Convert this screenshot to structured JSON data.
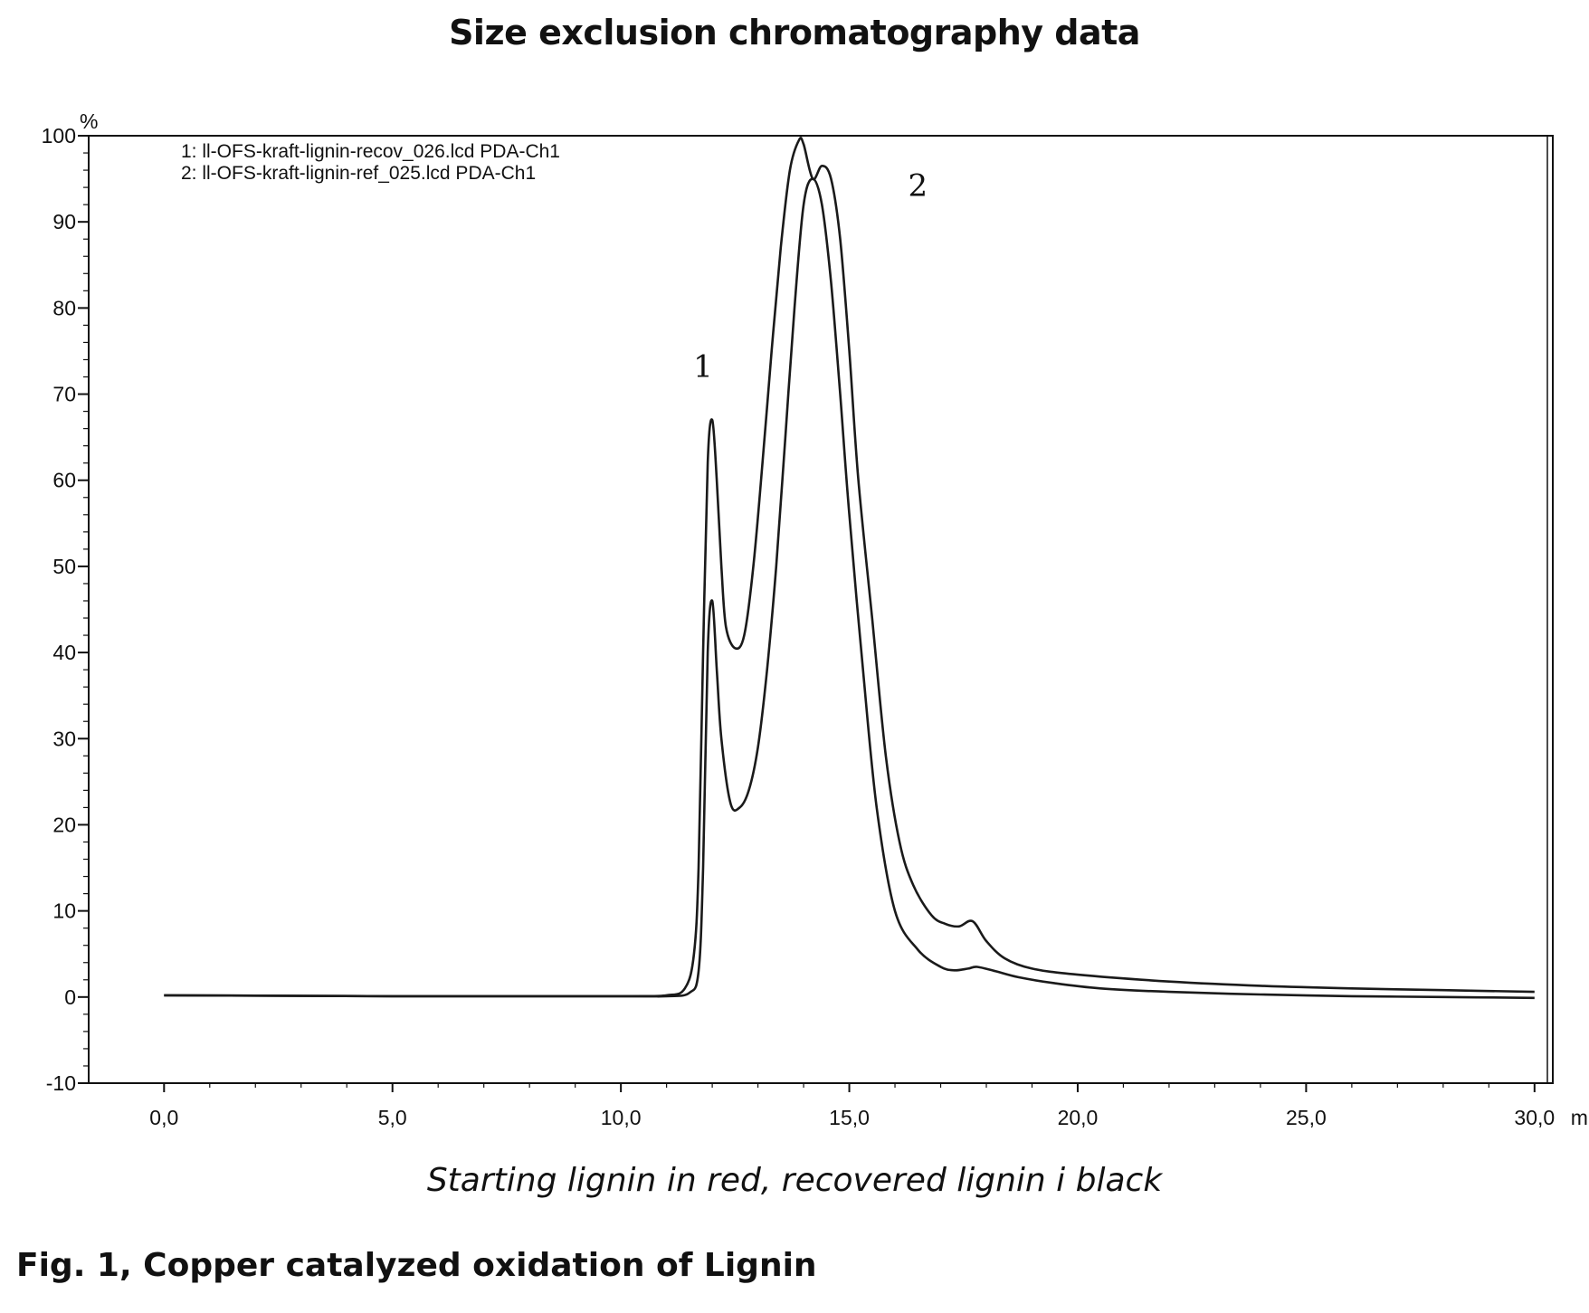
{
  "header": {
    "title": "Size exclusion chromatography data"
  },
  "footer": {
    "subtitle": "Starting lignin in red, recovered lignin i black",
    "figure_caption": "Fig. 1, Copper catalyzed oxidation of Lignin"
  },
  "chart_data": {
    "type": "line",
    "xlabel": "min",
    "ylabel": "%",
    "xlim": [
      -1.65,
      30.4
    ],
    "ylim": [
      -10,
      100
    ],
    "x_ticks": [
      {
        "value": 0,
        "label": "0,0"
      },
      {
        "value": 5,
        "label": "5,0"
      },
      {
        "value": 10,
        "label": "10,0"
      },
      {
        "value": 15,
        "label": "15,0"
      },
      {
        "value": 20,
        "label": "20,0"
      },
      {
        "value": 25,
        "label": "25,0"
      },
      {
        "value": 30,
        "label": "30,0"
      }
    ],
    "y_ticks": [
      {
        "value": -10,
        "label": "-10"
      },
      {
        "value": 0,
        "label": "0"
      },
      {
        "value": 10,
        "label": "10"
      },
      {
        "value": 20,
        "label": "20"
      },
      {
        "value": 30,
        "label": "30"
      },
      {
        "value": 40,
        "label": "40"
      },
      {
        "value": 50,
        "label": "50"
      },
      {
        "value": 60,
        "label": "60"
      },
      {
        "value": 70,
        "label": "70"
      },
      {
        "value": 80,
        "label": "80"
      },
      {
        "value": 90,
        "label": "90"
      },
      {
        "value": 100,
        "label": "100"
      }
    ],
    "grid": false,
    "legend_position": "top-left",
    "line_color": "#1a1a1a",
    "series": [
      {
        "name": "1: ll-OFS-kraft-lignin-recov_026.lcd PDA-Ch1",
        "x": [
          0,
          5,
          10,
          11,
          11.5,
          11.7,
          11.8,
          11.9,
          12.0,
          12.1,
          12.2,
          12.4,
          12.6,
          12.8,
          13.0,
          13.2,
          13.4,
          13.6,
          13.8,
          14.0,
          14.2,
          14.4,
          14.6,
          14.8,
          15.0,
          15.3,
          15.6,
          16.0,
          16.5,
          17.0,
          17.3,
          17.6,
          17.8,
          18.2,
          18.7,
          19.5,
          20.5,
          22,
          24,
          26,
          28,
          30
        ],
        "y": [
          0.2,
          0.1,
          0.1,
          0.1,
          0.5,
          3,
          15,
          40,
          46,
          38,
          30,
          22.5,
          22,
          24,
          29,
          38,
          50,
          65,
          80,
          92,
          95,
          92,
          83,
          70,
          56,
          38,
          22,
          10,
          5.5,
          3.5,
          3.1,
          3.3,
          3.5,
          3.0,
          2.3,
          1.6,
          1.0,
          0.6,
          0.3,
          0.1,
          0.0,
          -0.1
        ]
      },
      {
        "name": "2: ll-OFS-kraft-lignin-ref_025.lcd PDA-Ch1",
        "x": [
          0,
          5,
          10,
          11,
          11.4,
          11.6,
          11.7,
          11.8,
          11.9,
          12.0,
          12.1,
          12.2,
          12.3,
          12.5,
          12.7,
          12.9,
          13.1,
          13.3,
          13.5,
          13.7,
          13.9,
          14.0,
          14.2,
          14.4,
          14.6,
          14.8,
          15.0,
          15.2,
          15.5,
          15.8,
          16.1,
          16.4,
          16.8,
          17.1,
          17.4,
          17.7,
          18.0,
          18.4,
          19.0,
          20,
          22,
          24,
          26,
          28,
          30
        ],
        "y": [
          0.2,
          0.1,
          0.1,
          0.2,
          1,
          5,
          15,
          40,
          62,
          67,
          60,
          50,
          43,
          40.5,
          42,
          50,
          62,
          75,
          87,
          96,
          99.5,
          99,
          95,
          96.5,
          95,
          88,
          75,
          60,
          44,
          28,
          18,
          13,
          9.5,
          8.5,
          8.2,
          8.8,
          6.5,
          4.5,
          3.3,
          2.6,
          1.8,
          1.3,
          1.0,
          0.8,
          0.6
        ]
      }
    ],
    "annotations": [
      {
        "text": "1",
        "x": 11.8,
        "y": 72
      },
      {
        "text": "2",
        "x": 16.5,
        "y": 93
      }
    ]
  }
}
